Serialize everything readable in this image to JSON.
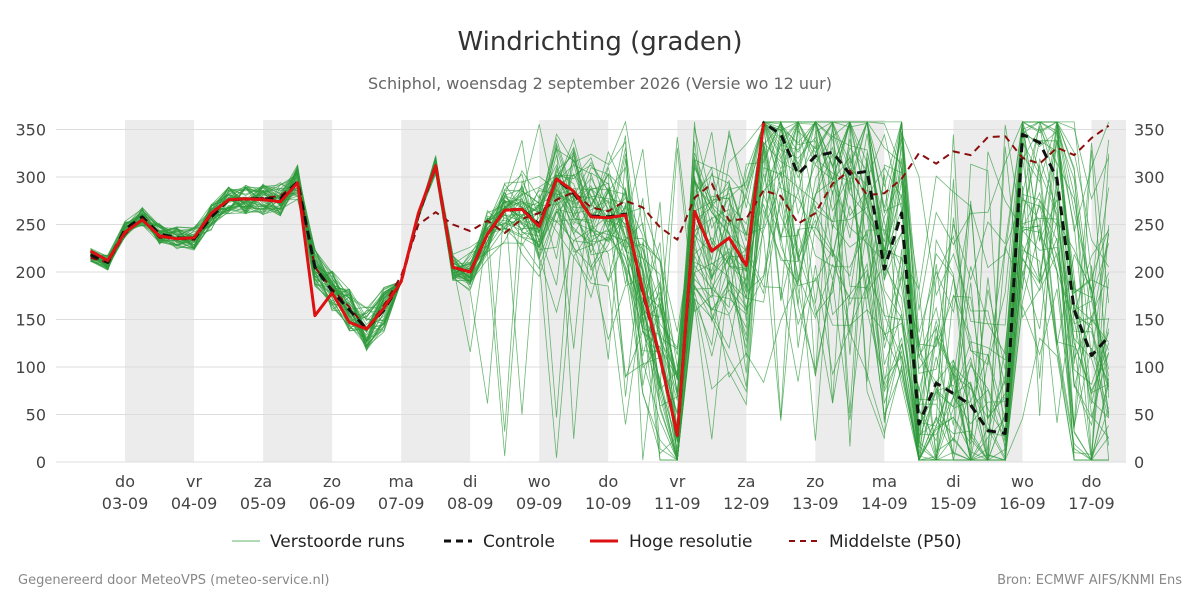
{
  "chart_data": {
    "type": "line",
    "title": "Windrichting (graden)",
    "subtitle": "Schiphol, woensdag  2 september 2026 (Versie wo 12 uur)",
    "ylim": [
      0,
      360
    ],
    "yticks": [
      0,
      50,
      100,
      150,
      200,
      250,
      300,
      350
    ],
    "grid": true,
    "legend_position": "bottom",
    "x_start": "2026-09-02",
    "x_days": 15.5,
    "xticks": [
      {
        "day": "do",
        "date": "03-09"
      },
      {
        "day": "vr",
        "date": "04-09"
      },
      {
        "day": "za",
        "date": "05-09"
      },
      {
        "day": "zo",
        "date": "06-09"
      },
      {
        "day": "ma",
        "date": "07-09"
      },
      {
        "day": "di",
        "date": "08-09"
      },
      {
        "day": "wo",
        "date": "09-09"
      },
      {
        "day": "do",
        "date": "10-09"
      },
      {
        "day": "vr",
        "date": "11-09"
      },
      {
        "day": "za",
        "date": "12-09"
      },
      {
        "day": "zo",
        "date": "13-09"
      },
      {
        "day": "ma",
        "date": "14-09"
      },
      {
        "day": "di",
        "date": "15-09"
      },
      {
        "day": "wo",
        "date": "16-09"
      },
      {
        "day": "do",
        "date": "17-09"
      }
    ],
    "weekend_shading": true,
    "colors": {
      "ensemble": "#2e9a3a",
      "control": "#111111",
      "high_res": "#dd1111",
      "median": "#8b0e0e",
      "shade": "#ececec",
      "grid": "#dddddd"
    },
    "series": [
      {
        "name": "Controle",
        "style": "dashed",
        "points": [
          [
            0.5,
            218
          ],
          [
            0.75,
            210
          ],
          [
            1,
            245
          ],
          [
            1.25,
            258
          ],
          [
            1.5,
            240
          ],
          [
            1.75,
            236
          ],
          [
            2,
            235
          ],
          [
            2.25,
            258
          ],
          [
            2.5,
            276
          ],
          [
            2.75,
            277
          ],
          [
            3,
            277
          ],
          [
            3.25,
            277
          ],
          [
            3.5,
            295
          ],
          [
            3.75,
            205
          ],
          [
            4,
            180
          ],
          [
            4.25,
            160
          ],
          [
            4.5,
            140
          ],
          [
            4.75,
            160
          ],
          [
            5,
            190
          ],
          [
            5.25,
            260
          ],
          [
            5.5,
            312
          ],
          [
            5.75,
            205
          ],
          [
            6,
            200
          ],
          [
            6.25,
            240
          ],
          [
            6.5,
            265
          ],
          [
            6.75,
            266
          ],
          [
            7,
            250
          ],
          [
            7.25,
            298
          ],
          [
            7.5,
            283
          ],
          [
            7.75,
            259
          ],
          [
            8,
            258
          ],
          [
            8.25,
            261
          ],
          [
            8.5,
            178
          ],
          [
            8.75,
            110
          ],
          [
            9,
            28
          ],
          [
            9.25,
            263
          ],
          [
            9.5,
            222
          ],
          [
            9.75,
            236
          ],
          [
            10,
            206
          ],
          [
            10.25,
            357
          ],
          [
            10.5,
            345
          ],
          [
            10.75,
            303
          ],
          [
            11,
            322
          ],
          [
            11.25,
            326
          ],
          [
            11.5,
            303
          ],
          [
            11.75,
            306
          ],
          [
            12,
            203
          ],
          [
            12.25,
            262
          ],
          [
            12.5,
            40
          ],
          [
            12.75,
            83
          ],
          [
            13,
            72
          ],
          [
            13.25,
            60
          ],
          [
            13.5,
            33
          ],
          [
            13.75,
            30
          ],
          [
            14,
            345
          ],
          [
            14.25,
            336
          ],
          [
            14.5,
            298
          ],
          [
            14.75,
            160
          ],
          [
            15,
            112
          ],
          [
            15.25,
            132
          ]
        ]
      },
      {
        "name": "Hoge resolutie",
        "style": "solid",
        "points": [
          [
            0.5,
            222
          ],
          [
            0.75,
            212
          ],
          [
            1,
            242
          ],
          [
            1.25,
            255
          ],
          [
            1.5,
            238
          ],
          [
            1.75,
            235
          ],
          [
            2,
            236
          ],
          [
            2.25,
            262
          ],
          [
            2.5,
            276
          ],
          [
            2.75,
            277
          ],
          [
            3,
            276
          ],
          [
            3.25,
            274
          ],
          [
            3.5,
            294
          ],
          [
            3.75,
            154
          ],
          [
            4,
            178
          ],
          [
            4.25,
            147
          ],
          [
            4.5,
            140
          ],
          [
            4.75,
            162
          ],
          [
            5,
            190
          ],
          [
            5.25,
            262
          ],
          [
            5.5,
            312
          ],
          [
            5.75,
            205
          ],
          [
            6,
            200
          ],
          [
            6.25,
            240
          ],
          [
            6.5,
            265
          ],
          [
            6.75,
            266
          ],
          [
            7,
            248
          ],
          [
            7.25,
            298
          ],
          [
            7.5,
            285
          ],
          [
            7.75,
            258
          ],
          [
            8,
            257
          ],
          [
            8.25,
            260
          ],
          [
            8.5,
            180
          ],
          [
            8.75,
            110
          ],
          [
            9,
            28
          ],
          [
            9.25,
            264
          ],
          [
            9.5,
            222
          ],
          [
            9.75,
            236
          ],
          [
            10,
            207
          ],
          [
            10.25,
            357
          ]
        ]
      },
      {
        "name": "Middelste (P50)",
        "style": "dashed",
        "points": [
          [
            0.5,
            215
          ],
          [
            0.75,
            210
          ],
          [
            1,
            240
          ],
          [
            1.25,
            256
          ],
          [
            1.5,
            236
          ],
          [
            1.75,
            235
          ],
          [
            2,
            234
          ],
          [
            2.25,
            260
          ],
          [
            2.5,
            276
          ],
          [
            2.75,
            276
          ],
          [
            3,
            278
          ],
          [
            3.25,
            280
          ],
          [
            3.5,
            294
          ],
          [
            3.75,
            205
          ],
          [
            4,
            182
          ],
          [
            4.25,
            163
          ],
          [
            4.5,
            140
          ],
          [
            4.75,
            165
          ],
          [
            5,
            196
          ],
          [
            5.25,
            250
          ],
          [
            5.5,
            263
          ],
          [
            5.75,
            250
          ],
          [
            6,
            243
          ],
          [
            6.25,
            254
          ],
          [
            6.5,
            241
          ],
          [
            6.75,
            256
          ],
          [
            7,
            262
          ],
          [
            7.25,
            276
          ],
          [
            7.5,
            284
          ],
          [
            7.75,
            268
          ],
          [
            8,
            264
          ],
          [
            8.25,
            275
          ],
          [
            8.5,
            268
          ],
          [
            8.75,
            247
          ],
          [
            9,
            234
          ],
          [
            9.25,
            278
          ],
          [
            9.5,
            293
          ],
          [
            9.75,
            254
          ],
          [
            10,
            256
          ],
          [
            10.25,
            286
          ],
          [
            10.5,
            280
          ],
          [
            10.75,
            251
          ],
          [
            11,
            262
          ],
          [
            11.25,
            293
          ],
          [
            11.5,
            307
          ],
          [
            11.75,
            281
          ],
          [
            12,
            283
          ],
          [
            12.25,
            298
          ],
          [
            12.5,
            325
          ],
          [
            12.75,
            314
          ],
          [
            13,
            327
          ],
          [
            13.25,
            323
          ],
          [
            13.5,
            342
          ],
          [
            13.75,
            343
          ],
          [
            14,
            320
          ],
          [
            14.25,
            314
          ],
          [
            14.5,
            331
          ],
          [
            14.75,
            323
          ],
          [
            15,
            341
          ],
          [
            15.25,
            354
          ]
        ]
      }
    ],
    "ensemble": {
      "name": "Verstoorde runs",
      "members": 50,
      "note": "ensemble spread drawn as thin green lines"
    }
  },
  "legend": {
    "items": [
      {
        "label": "Verstoorde runs"
      },
      {
        "label": "Controle"
      },
      {
        "label": "Hoge resolutie"
      },
      {
        "label": "Middelste (P50)"
      }
    ]
  },
  "footer": {
    "left": "Gegenereerd door MeteoVPS (meteo-service.nl)",
    "right": "Bron: ECMWF AIFS/KNMI Ens"
  }
}
